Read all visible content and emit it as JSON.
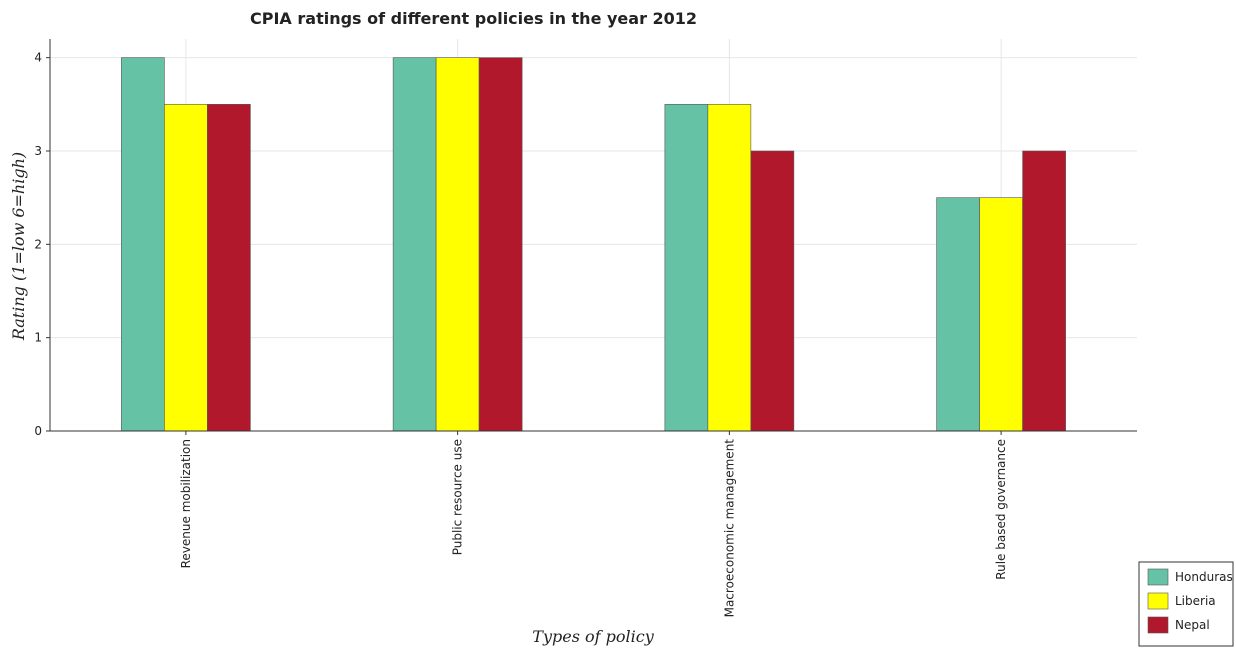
{
  "chart_data": {
    "type": "bar",
    "title": "CPIA ratings of different policies in the year 2012",
    "xlabel": "Types of policy",
    "ylabel": "Rating (1=low 6=high)",
    "categories": [
      "Revenue mobilization",
      "Public resource use",
      "Macroeconomic management",
      "Rule based governance"
    ],
    "series": [
      {
        "name": "Honduras",
        "color": "#66c2a5",
        "values": [
          4.0,
          4.0,
          3.5,
          2.5
        ]
      },
      {
        "name": "Liberia",
        "color": "#ffff00",
        "values": [
          3.5,
          4.0,
          3.5,
          2.5
        ]
      },
      {
        "name": "Nepal",
        "color": "#b2182b",
        "values": [
          3.5,
          4.0,
          3.0,
          3.0
        ]
      }
    ],
    "ylim": [
      0,
      4.2
    ],
    "yticks": [
      0,
      1,
      2,
      3,
      4
    ],
    "grid": true,
    "legend_position": "bottom-right"
  }
}
